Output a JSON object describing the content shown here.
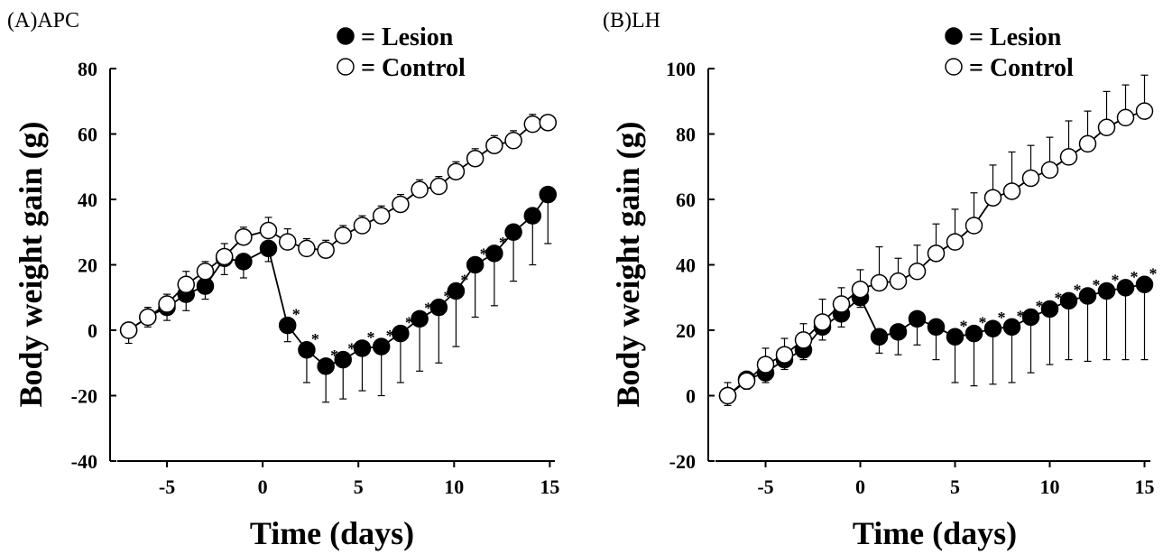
{
  "chart_data": [
    {
      "type": "line",
      "panel_label": "(A)APC",
      "xlabel": "Time (days)",
      "ylabel": "Body weight gain (g)",
      "xlim": [
        -7.5,
        15.5
      ],
      "ylim": [
        -40,
        80
      ],
      "xticks": [
        -5,
        0,
        5,
        10,
        15
      ],
      "yticks": [
        -40,
        -20,
        0,
        20,
        40,
        60,
        80
      ],
      "legend": {
        "position": "top-right",
        "entries": [
          {
            "marker": "filled",
            "label": "= Lesion"
          },
          {
            "marker": "open",
            "label": "= Control"
          }
        ]
      },
      "significance_marker": "*",
      "series": [
        {
          "name": "Lesion",
          "marker": "filled",
          "x": [
            -7,
            -6,
            -5,
            -4,
            -3,
            -2,
            -1,
            0.3,
            1.3,
            2.3,
            3.3,
            4.2,
            5.2,
            6.2,
            7.2,
            8.2,
            9.2,
            10.1,
            11.1,
            12.1,
            13.1,
            14.1,
            14.9
          ],
          "y": [
            0,
            4,
            7,
            11,
            13.5,
            22,
            21,
            25,
            1.5,
            -6,
            -11,
            -9,
            -5.5,
            -5,
            -1,
            3.5,
            7,
            12,
            20,
            23.5,
            30,
            35,
            41.5
          ],
          "err": [
            4,
            3,
            4,
            5,
            4,
            5,
            5,
            4,
            5,
            10,
            11,
            12,
            13,
            15,
            15,
            16,
            17,
            17,
            16,
            16,
            15,
            15,
            15
          ],
          "err_dir": [
            "down",
            "down",
            "down",
            "down",
            "down",
            "down",
            "down",
            "down",
            "down",
            "down",
            "down",
            "down",
            "down",
            "down",
            "down",
            "down",
            "down",
            "down",
            "down",
            "down",
            "down",
            "down",
            "down"
          ],
          "significant": [
            false,
            false,
            false,
            false,
            false,
            false,
            false,
            false,
            true,
            true,
            true,
            true,
            true,
            true,
            true,
            true,
            true,
            true,
            true,
            true,
            false,
            false,
            false
          ]
        },
        {
          "name": "Control",
          "marker": "open",
          "x": [
            -7,
            -6,
            -5,
            -4,
            -3,
            -2,
            -1,
            0.3,
            1.3,
            2.3,
            3.3,
            4.2,
            5.2,
            6.2,
            7.2,
            8.2,
            9.2,
            10.1,
            11.1,
            12.1,
            13.1,
            14.1,
            14.9
          ],
          "y": [
            0,
            4,
            8,
            14,
            18,
            22.5,
            28.5,
            30.5,
            27,
            25,
            24.5,
            29,
            32,
            35,
            38.5,
            43,
            44,
            48.5,
            52.5,
            56.5,
            58,
            63,
            63.5
          ],
          "err": [
            2,
            3,
            3,
            4,
            3,
            4,
            3,
            4,
            4,
            3,
            3,
            3,
            3,
            3,
            3,
            3,
            3,
            3,
            3,
            3,
            3,
            3,
            2
          ],
          "err_dir": [
            "up",
            "up",
            "up",
            "up",
            "up",
            "up",
            "up",
            "up",
            "up",
            "up",
            "up",
            "up",
            "up",
            "up",
            "up",
            "up",
            "up",
            "up",
            "up",
            "up",
            "up",
            "up",
            "up"
          ]
        }
      ]
    },
    {
      "type": "line",
      "panel_label": "(B)LH",
      "xlabel": "Time (days)",
      "ylabel": "Body weight gain (g)",
      "xlim": [
        -7.5,
        15.5
      ],
      "ylim": [
        -20,
        100
      ],
      "xticks": [
        -5,
        0,
        5,
        10,
        15
      ],
      "yticks": [
        -20,
        0,
        20,
        40,
        60,
        80,
        100
      ],
      "legend": {
        "position": "top-right",
        "entries": [
          {
            "marker": "filled",
            "label": "= Lesion"
          },
          {
            "marker": "open",
            "label": "= Control"
          }
        ]
      },
      "significance_marker": "*",
      "series": [
        {
          "name": "Lesion",
          "marker": "filled",
          "x": [
            -7,
            -6,
            -5,
            -4,
            -3,
            -2,
            -1,
            0,
            1,
            2,
            3,
            4,
            5,
            6,
            7,
            8,
            9,
            10,
            11,
            12,
            13,
            14,
            15
          ],
          "y": [
            0,
            5,
            7,
            11,
            14,
            21,
            25,
            30,
            18,
            19.5,
            23.5,
            21,
            18,
            19,
            20.5,
            21,
            24,
            26.5,
            29,
            30.5,
            32,
            33,
            34
          ],
          "err": [
            3,
            3,
            3,
            3,
            3,
            4,
            4,
            3,
            5,
            7,
            8,
            10,
            14,
            16,
            17,
            17,
            17,
            17,
            18,
            20,
            21,
            22,
            23
          ],
          "err_dir": [
            "down",
            "down",
            "down",
            "down",
            "down",
            "down",
            "down",
            "down",
            "down",
            "down",
            "down",
            "down",
            "down",
            "down",
            "down",
            "down",
            "down",
            "down",
            "down",
            "down",
            "down",
            "down",
            "down"
          ],
          "significant": [
            false,
            false,
            false,
            false,
            false,
            false,
            false,
            false,
            false,
            false,
            false,
            false,
            true,
            true,
            true,
            true,
            true,
            true,
            true,
            true,
            true,
            true,
            true
          ]
        },
        {
          "name": "Control",
          "marker": "open",
          "x": [
            -7,
            -6,
            -5,
            -4,
            -3,
            -2,
            -1,
            0,
            1,
            2,
            3,
            4,
            5,
            6,
            7,
            8,
            9,
            10,
            11,
            12,
            13,
            14,
            15
          ],
          "y": [
            0,
            4.5,
            9.5,
            12.5,
            17,
            22.5,
            28,
            32.5,
            34.5,
            35,
            38,
            43.5,
            47,
            52,
            60.5,
            62.5,
            66.5,
            69,
            73,
            77,
            82,
            85,
            87
          ],
          "err": [
            4,
            2,
            5,
            5,
            5,
            7,
            5,
            6,
            11,
            7,
            8,
            9,
            10,
            10,
            10,
            12,
            10,
            10,
            11,
            10,
            11,
            10,
            11
          ],
          "err_dir": [
            "up",
            "up",
            "up",
            "up",
            "up",
            "up",
            "up",
            "up",
            "up",
            "up",
            "up",
            "up",
            "up",
            "up",
            "up",
            "up",
            "up",
            "up",
            "up",
            "up",
            "up",
            "up",
            "up"
          ]
        }
      ]
    }
  ]
}
